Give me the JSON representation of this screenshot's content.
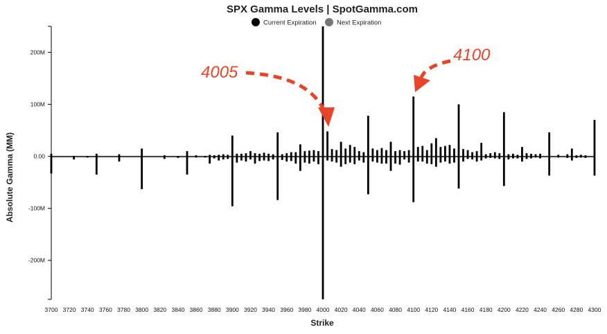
{
  "chart_data": {
    "type": "bar",
    "title": "SPX Gamma Levels | SpotGamma.com",
    "xlabel": "Strike",
    "ylabel": "Absolute Gamma (MM)",
    "ylim": [
      -275,
      250
    ],
    "yticks": [
      200,
      100,
      0,
      -100,
      -200
    ],
    "ytick_labels": [
      "200M",
      "100M",
      "0.00",
      "-100M",
      "-200M"
    ],
    "xlim": [
      3700,
      4300
    ],
    "xticks": [
      3700,
      3720,
      3740,
      3760,
      3780,
      3800,
      3820,
      3840,
      3860,
      3880,
      3900,
      3920,
      3940,
      3960,
      3980,
      4000,
      4020,
      4040,
      4060,
      4080,
      4100,
      4120,
      4140,
      4160,
      4180,
      4200,
      4220,
      4240,
      4260,
      4280,
      4300
    ],
    "legend": [
      {
        "label": "Current Expiration",
        "color": "#000000"
      },
      {
        "label": "Next Expiration",
        "color": "#777777"
      }
    ],
    "legend_position": "top-center",
    "bar_color": "#000000",
    "series": [
      {
        "name": "Current Expiration",
        "points": [
          [
            3700,
            5
          ],
          [
            3725,
            1
          ],
          [
            3750,
            5
          ],
          [
            3775,
            4
          ],
          [
            3800,
            15
          ],
          [
            3825,
            2
          ],
          [
            3850,
            10
          ],
          [
            3860,
            2
          ],
          [
            3870,
            1
          ],
          [
            3875,
            3
          ],
          [
            3880,
            2
          ],
          [
            3885,
            3
          ],
          [
            3890,
            4
          ],
          [
            3895,
            3
          ],
          [
            3900,
            40
          ],
          [
            3905,
            5
          ],
          [
            3910,
            5
          ],
          [
            3915,
            6
          ],
          [
            3920,
            10
          ],
          [
            3925,
            6
          ],
          [
            3930,
            5
          ],
          [
            3935,
            7
          ],
          [
            3940,
            5
          ],
          [
            3945,
            4
          ],
          [
            3950,
            46
          ],
          [
            3955,
            4
          ],
          [
            3960,
            6
          ],
          [
            3965,
            8
          ],
          [
            3970,
            8
          ],
          [
            3975,
            23
          ],
          [
            3980,
            10
          ],
          [
            3985,
            11
          ],
          [
            3990,
            12
          ],
          [
            3995,
            10
          ],
          [
            4000,
            250
          ],
          [
            4005,
            48
          ],
          [
            4010,
            14
          ],
          [
            4015,
            12
          ],
          [
            4020,
            28
          ],
          [
            4025,
            15
          ],
          [
            4030,
            22
          ],
          [
            4035,
            18
          ],
          [
            4040,
            10
          ],
          [
            4045,
            8
          ],
          [
            4050,
            78
          ],
          [
            4055,
            15
          ],
          [
            4060,
            12
          ],
          [
            4065,
            16
          ],
          [
            4070,
            12
          ],
          [
            4075,
            28
          ],
          [
            4080,
            10
          ],
          [
            4085,
            12
          ],
          [
            4090,
            10
          ],
          [
            4095,
            12
          ],
          [
            4100,
            115
          ],
          [
            4105,
            18
          ],
          [
            4110,
            20
          ],
          [
            4115,
            12
          ],
          [
            4120,
            25
          ],
          [
            4125,
            35
          ],
          [
            4130,
            18
          ],
          [
            4135,
            20
          ],
          [
            4140,
            22
          ],
          [
            4145,
            15
          ],
          [
            4150,
            100
          ],
          [
            4155,
            14
          ],
          [
            4160,
            12
          ],
          [
            4165,
            8
          ],
          [
            4170,
            10
          ],
          [
            4175,
            26
          ],
          [
            4180,
            4
          ],
          [
            4185,
            6
          ],
          [
            4190,
            8
          ],
          [
            4195,
            6
          ],
          [
            4200,
            85
          ],
          [
            4205,
            4
          ],
          [
            4210,
            5
          ],
          [
            4215,
            3
          ],
          [
            4220,
            18
          ],
          [
            4225,
            6
          ],
          [
            4230,
            5
          ],
          [
            4235,
            4
          ],
          [
            4240,
            5
          ],
          [
            4250,
            46
          ],
          [
            4260,
            3
          ],
          [
            4270,
            4
          ],
          [
            4275,
            15
          ],
          [
            4280,
            2
          ],
          [
            4285,
            3
          ],
          [
            4290,
            2
          ],
          [
            4300,
            70
          ]
        ]
      },
      {
        "name": "Next Expiration",
        "points": [
          [
            3700,
            -33
          ],
          [
            3725,
            -6
          ],
          [
            3740,
            -2
          ],
          [
            3750,
            -35
          ],
          [
            3775,
            -10
          ],
          [
            3800,
            -63
          ],
          [
            3825,
            -5
          ],
          [
            3840,
            -3
          ],
          [
            3850,
            -35
          ],
          [
            3860,
            -2
          ],
          [
            3870,
            -2
          ],
          [
            3875,
            -14
          ],
          [
            3880,
            -4
          ],
          [
            3885,
            -8
          ],
          [
            3890,
            -6
          ],
          [
            3895,
            -5
          ],
          [
            3900,
            -96
          ],
          [
            3905,
            -12
          ],
          [
            3910,
            -8
          ],
          [
            3915,
            -10
          ],
          [
            3920,
            -6
          ],
          [
            3925,
            -14
          ],
          [
            3930,
            -9
          ],
          [
            3935,
            -8
          ],
          [
            3940,
            -9
          ],
          [
            3945,
            -6
          ],
          [
            3950,
            -84
          ],
          [
            3955,
            -7
          ],
          [
            3960,
            -10
          ],
          [
            3965,
            -9
          ],
          [
            3970,
            -14
          ],
          [
            3975,
            -28
          ],
          [
            3980,
            -12
          ],
          [
            3985,
            -14
          ],
          [
            3990,
            -10
          ],
          [
            3995,
            -15
          ],
          [
            4000,
            -275
          ],
          [
            4005,
            -8
          ],
          [
            4010,
            -10
          ],
          [
            4015,
            -12
          ],
          [
            4020,
            -20
          ],
          [
            4025,
            -15
          ],
          [
            4030,
            -12
          ],
          [
            4035,
            -15
          ],
          [
            4040,
            -8
          ],
          [
            4045,
            -12
          ],
          [
            4050,
            -73
          ],
          [
            4055,
            -10
          ],
          [
            4060,
            -12
          ],
          [
            4065,
            -14
          ],
          [
            4070,
            -14
          ],
          [
            4075,
            -28
          ],
          [
            4080,
            -14
          ],
          [
            4085,
            -16
          ],
          [
            4090,
            -6
          ],
          [
            4095,
            -12
          ],
          [
            4100,
            -88
          ],
          [
            4105,
            -10
          ],
          [
            4110,
            -10
          ],
          [
            4115,
            -14
          ],
          [
            4120,
            -15
          ],
          [
            4125,
            -20
          ],
          [
            4130,
            -12
          ],
          [
            4135,
            -10
          ],
          [
            4140,
            -14
          ],
          [
            4145,
            -12
          ],
          [
            4150,
            -62
          ],
          [
            4155,
            -10
          ],
          [
            4160,
            -5
          ],
          [
            4165,
            -6
          ],
          [
            4170,
            -10
          ],
          [
            4175,
            -8
          ],
          [
            4180,
            -4
          ],
          [
            4185,
            -3
          ],
          [
            4190,
            -4
          ],
          [
            4195,
            -5
          ],
          [
            4200,
            -57
          ],
          [
            4205,
            -6
          ],
          [
            4210,
            -4
          ],
          [
            4215,
            -4
          ],
          [
            4220,
            -10
          ],
          [
            4225,
            -5
          ],
          [
            4230,
            -4
          ],
          [
            4235,
            -2
          ],
          [
            4240,
            -4
          ],
          [
            4250,
            -37
          ],
          [
            4260,
            -2
          ],
          [
            4270,
            -3
          ],
          [
            4275,
            -8
          ],
          [
            4280,
            -3
          ],
          [
            4285,
            -2
          ],
          [
            4290,
            -3
          ],
          [
            4300,
            -37
          ]
        ]
      }
    ],
    "annotations": [
      {
        "text": "4005",
        "color": "#e8442a",
        "points_to": 4005
      },
      {
        "text": "4100",
        "color": "#e8442a",
        "points_to": 4100
      }
    ]
  }
}
